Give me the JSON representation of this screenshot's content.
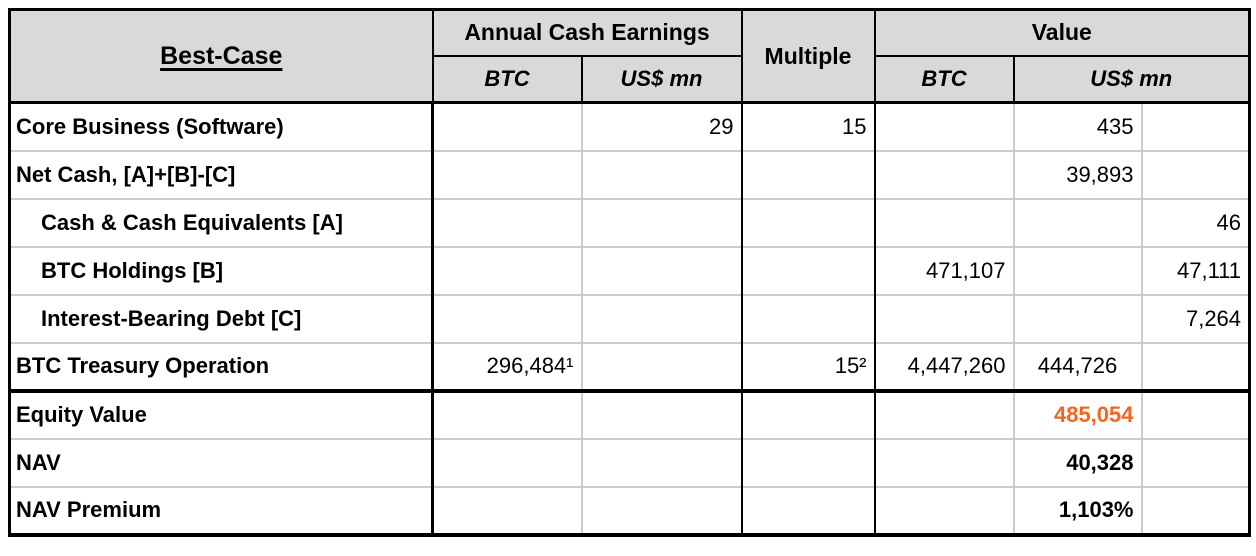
{
  "colors": {
    "accent_orange": "#F26522",
    "header_bg": "#D9D9D9",
    "grid_line": "#CCCCCC",
    "strong_line": "#000000"
  },
  "header": {
    "title": "Best-Case",
    "group_annual_cash_earnings": "Annual Cash Earnings",
    "group_multiple": "Multiple",
    "group_value": "Value",
    "sub_btc": "BTC",
    "sub_usd_mn": "US$ mn"
  },
  "chart_data": {
    "type": "table",
    "title": "Best-Case",
    "column_groups": [
      "Best-Case",
      "Annual Cash Earnings",
      "Multiple",
      "Value"
    ],
    "columns": [
      "Row",
      "Annual Cash Earnings BTC",
      "Annual Cash Earnings US$ mn",
      "Multiple",
      "Value BTC",
      "Value US$ mn",
      "Value US$ mn (detail)"
    ],
    "rows": [
      {
        "label": "Core Business (Software)",
        "ace_btc": "",
        "ace_usd": "29",
        "multiple": "15",
        "val_btc": "",
        "val_usd_a": "435",
        "val_usd_b": ""
      },
      {
        "label": "Net Cash, [A]+[B]-[C]",
        "ace_btc": "",
        "ace_usd": "",
        "multiple": "",
        "val_btc": "",
        "val_usd_a": "39,893",
        "val_usd_b": ""
      },
      {
        "label": "Cash & Cash Equivalents [A]",
        "ace_btc": "",
        "ace_usd": "",
        "multiple": "",
        "val_btc": "",
        "val_usd_a": "",
        "val_usd_b": "46"
      },
      {
        "label": "BTC Holdings [B]",
        "ace_btc": "",
        "ace_usd": "",
        "multiple": "",
        "val_btc": "471,107",
        "val_usd_a": "",
        "val_usd_b": "47,111"
      },
      {
        "label": "Interest-Bearing Debt [C]",
        "ace_btc": "",
        "ace_usd": "",
        "multiple": "",
        "val_btc": "",
        "val_usd_a": "",
        "val_usd_b": "7,264"
      },
      {
        "label": "BTC Treasury Operation",
        "ace_btc": "296,484¹",
        "ace_usd": "",
        "multiple": "15²",
        "val_btc": "4,447,260",
        "val_usd_a": "444,726",
        "val_usd_b": ""
      },
      {
        "label": "Equity Value",
        "ace_btc": "",
        "ace_usd": "",
        "multiple": "",
        "val_btc": "",
        "val_usd_a": "485,054",
        "val_usd_b": ""
      },
      {
        "label": "NAV",
        "ace_btc": "",
        "ace_usd": "",
        "multiple": "",
        "val_btc": "",
        "val_usd_a": "40,328",
        "val_usd_b": ""
      },
      {
        "label": "NAV Premium",
        "ace_btc": "",
        "ace_usd": "",
        "multiple": "",
        "val_btc": "",
        "val_usd_a": "1,103%",
        "val_usd_b": ""
      }
    ],
    "footnotes_visible_markers": [
      "1",
      "2"
    ],
    "highlight": {
      "row": "Equity Value",
      "value": "485,054",
      "color": "#F26522"
    }
  }
}
